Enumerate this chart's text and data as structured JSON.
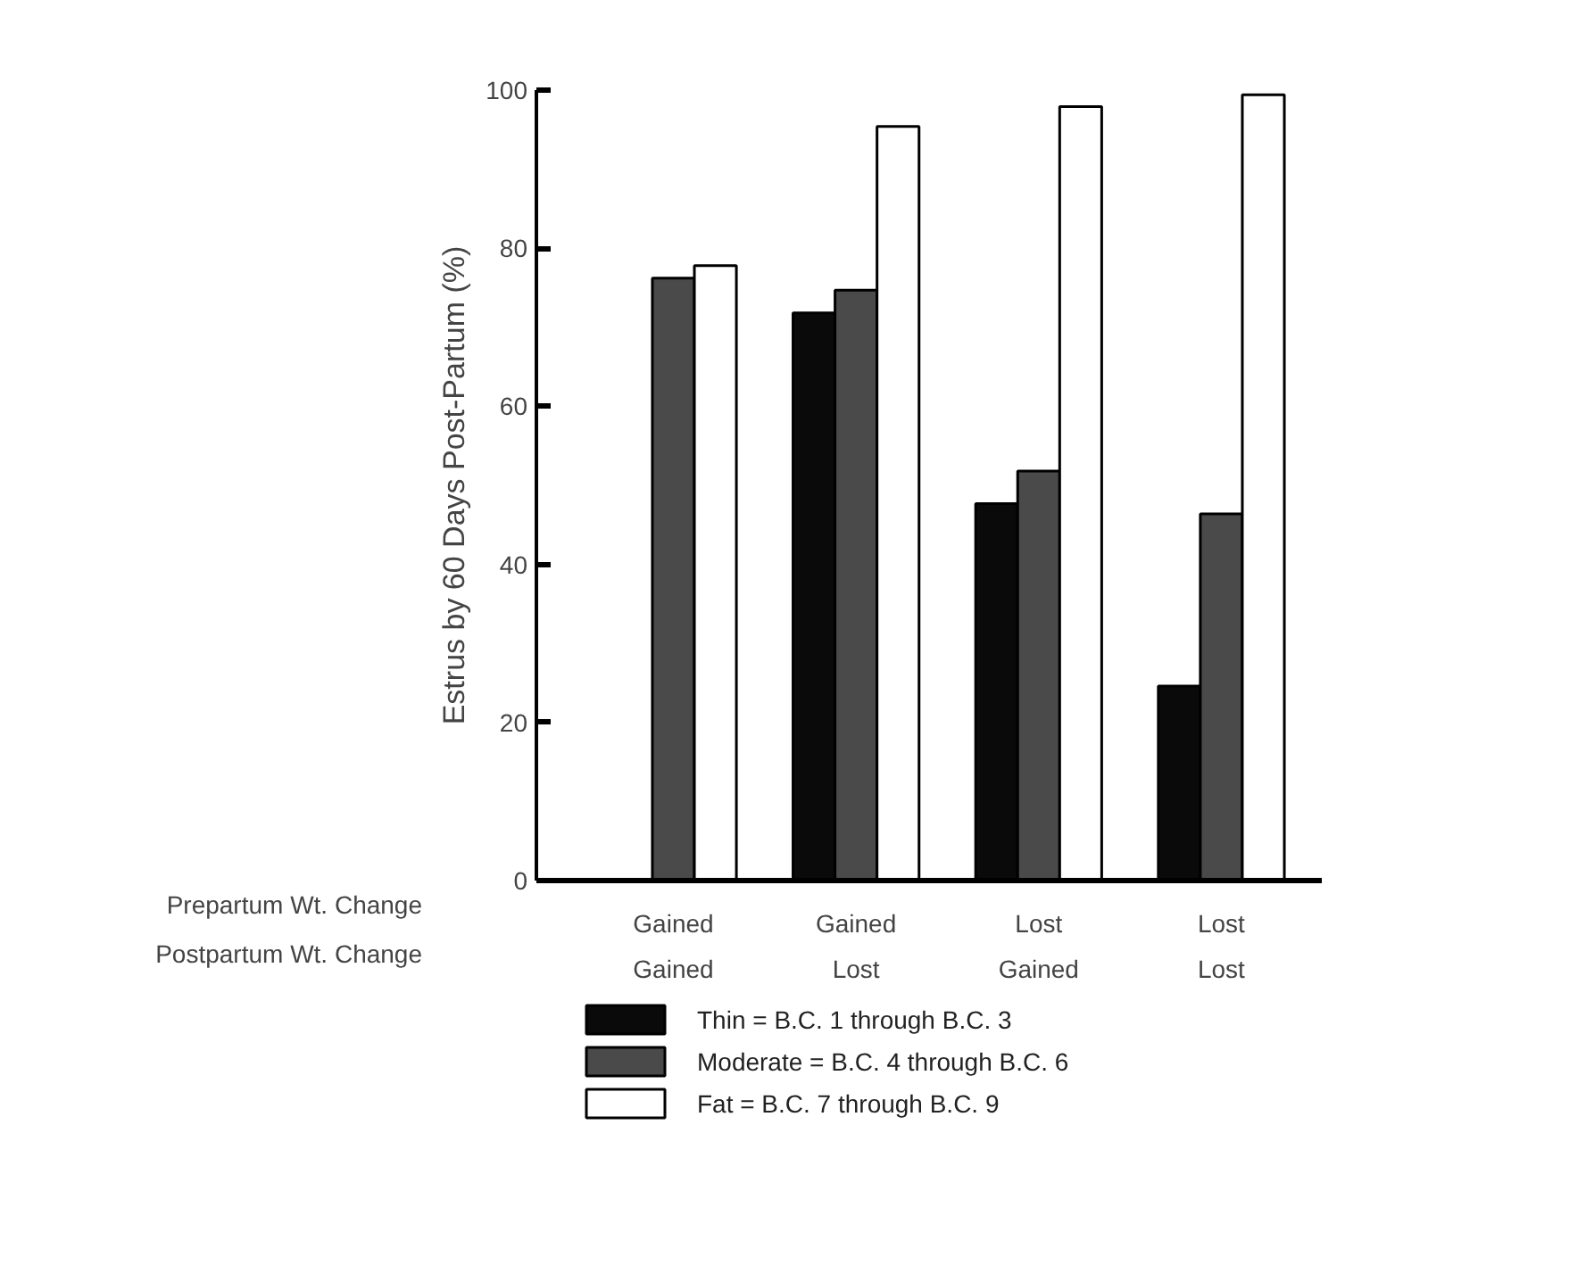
{
  "chart_data": {
    "type": "bar",
    "ylabel": "Estrus by 60 Days Post-Partum (%)",
    "categories": [
      "Gained\nGained",
      "Gained\nLost",
      "Lost\nGained",
      "Lost\nLost"
    ],
    "series": [
      {
        "name": "Thin      = B.C. 1 through B.C. 3",
        "color": "#0a0a0a",
        "values": [
          null,
          71.8,
          47.7,
          24.6
        ]
      },
      {
        "name": "Moderate = B.C. 4 through B.C. 6",
        "color": "#4a4a4a",
        "values": [
          76.2,
          74.7,
          51.8,
          46.4
        ]
      },
      {
        "name": "Fat         = B.C. 7 through B.C. 9",
        "color": "#ffffff",
        "values": [
          77.8,
          95.4,
          97.9,
          99.4
        ]
      }
    ],
    "annotations": [
      "Prepartum Wt. Change",
      "Postpartum Wt. Change"
    ],
    "ylim": [
      0,
      100
    ],
    "yticks": [
      0,
      20,
      40,
      60,
      80,
      100
    ],
    "grid": false,
    "legend": "bottom"
  }
}
